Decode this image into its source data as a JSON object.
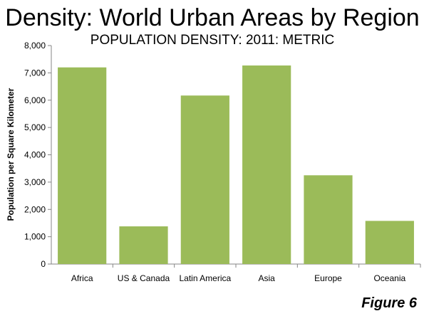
{
  "chart_data": {
    "type": "bar",
    "title": "Density: World Urban Areas by Region",
    "subtitle": "POPULATION DENSITY: 2011: METRIC",
    "xlabel": "",
    "ylabel": "Population per Square Kilometer",
    "categories": [
      "Africa",
      "US & Canada",
      "Latin America",
      "Asia",
      "Europe",
      "Oceania"
    ],
    "values": [
      7200,
      1380,
      6170,
      7270,
      3250,
      1580
    ],
    "ylim": [
      0,
      8000
    ],
    "yticks": [
      0,
      1000,
      2000,
      3000,
      4000,
      5000,
      6000,
      7000,
      8000
    ],
    "ytick_labels": [
      "0",
      "1,000",
      "2,000",
      "3,000",
      "4,000",
      "5,000",
      "6,000",
      "7,000",
      "8,000"
    ],
    "bar_color": "#9BBB59",
    "grid": false,
    "legend": "none"
  },
  "figure_label": "Figure 6"
}
